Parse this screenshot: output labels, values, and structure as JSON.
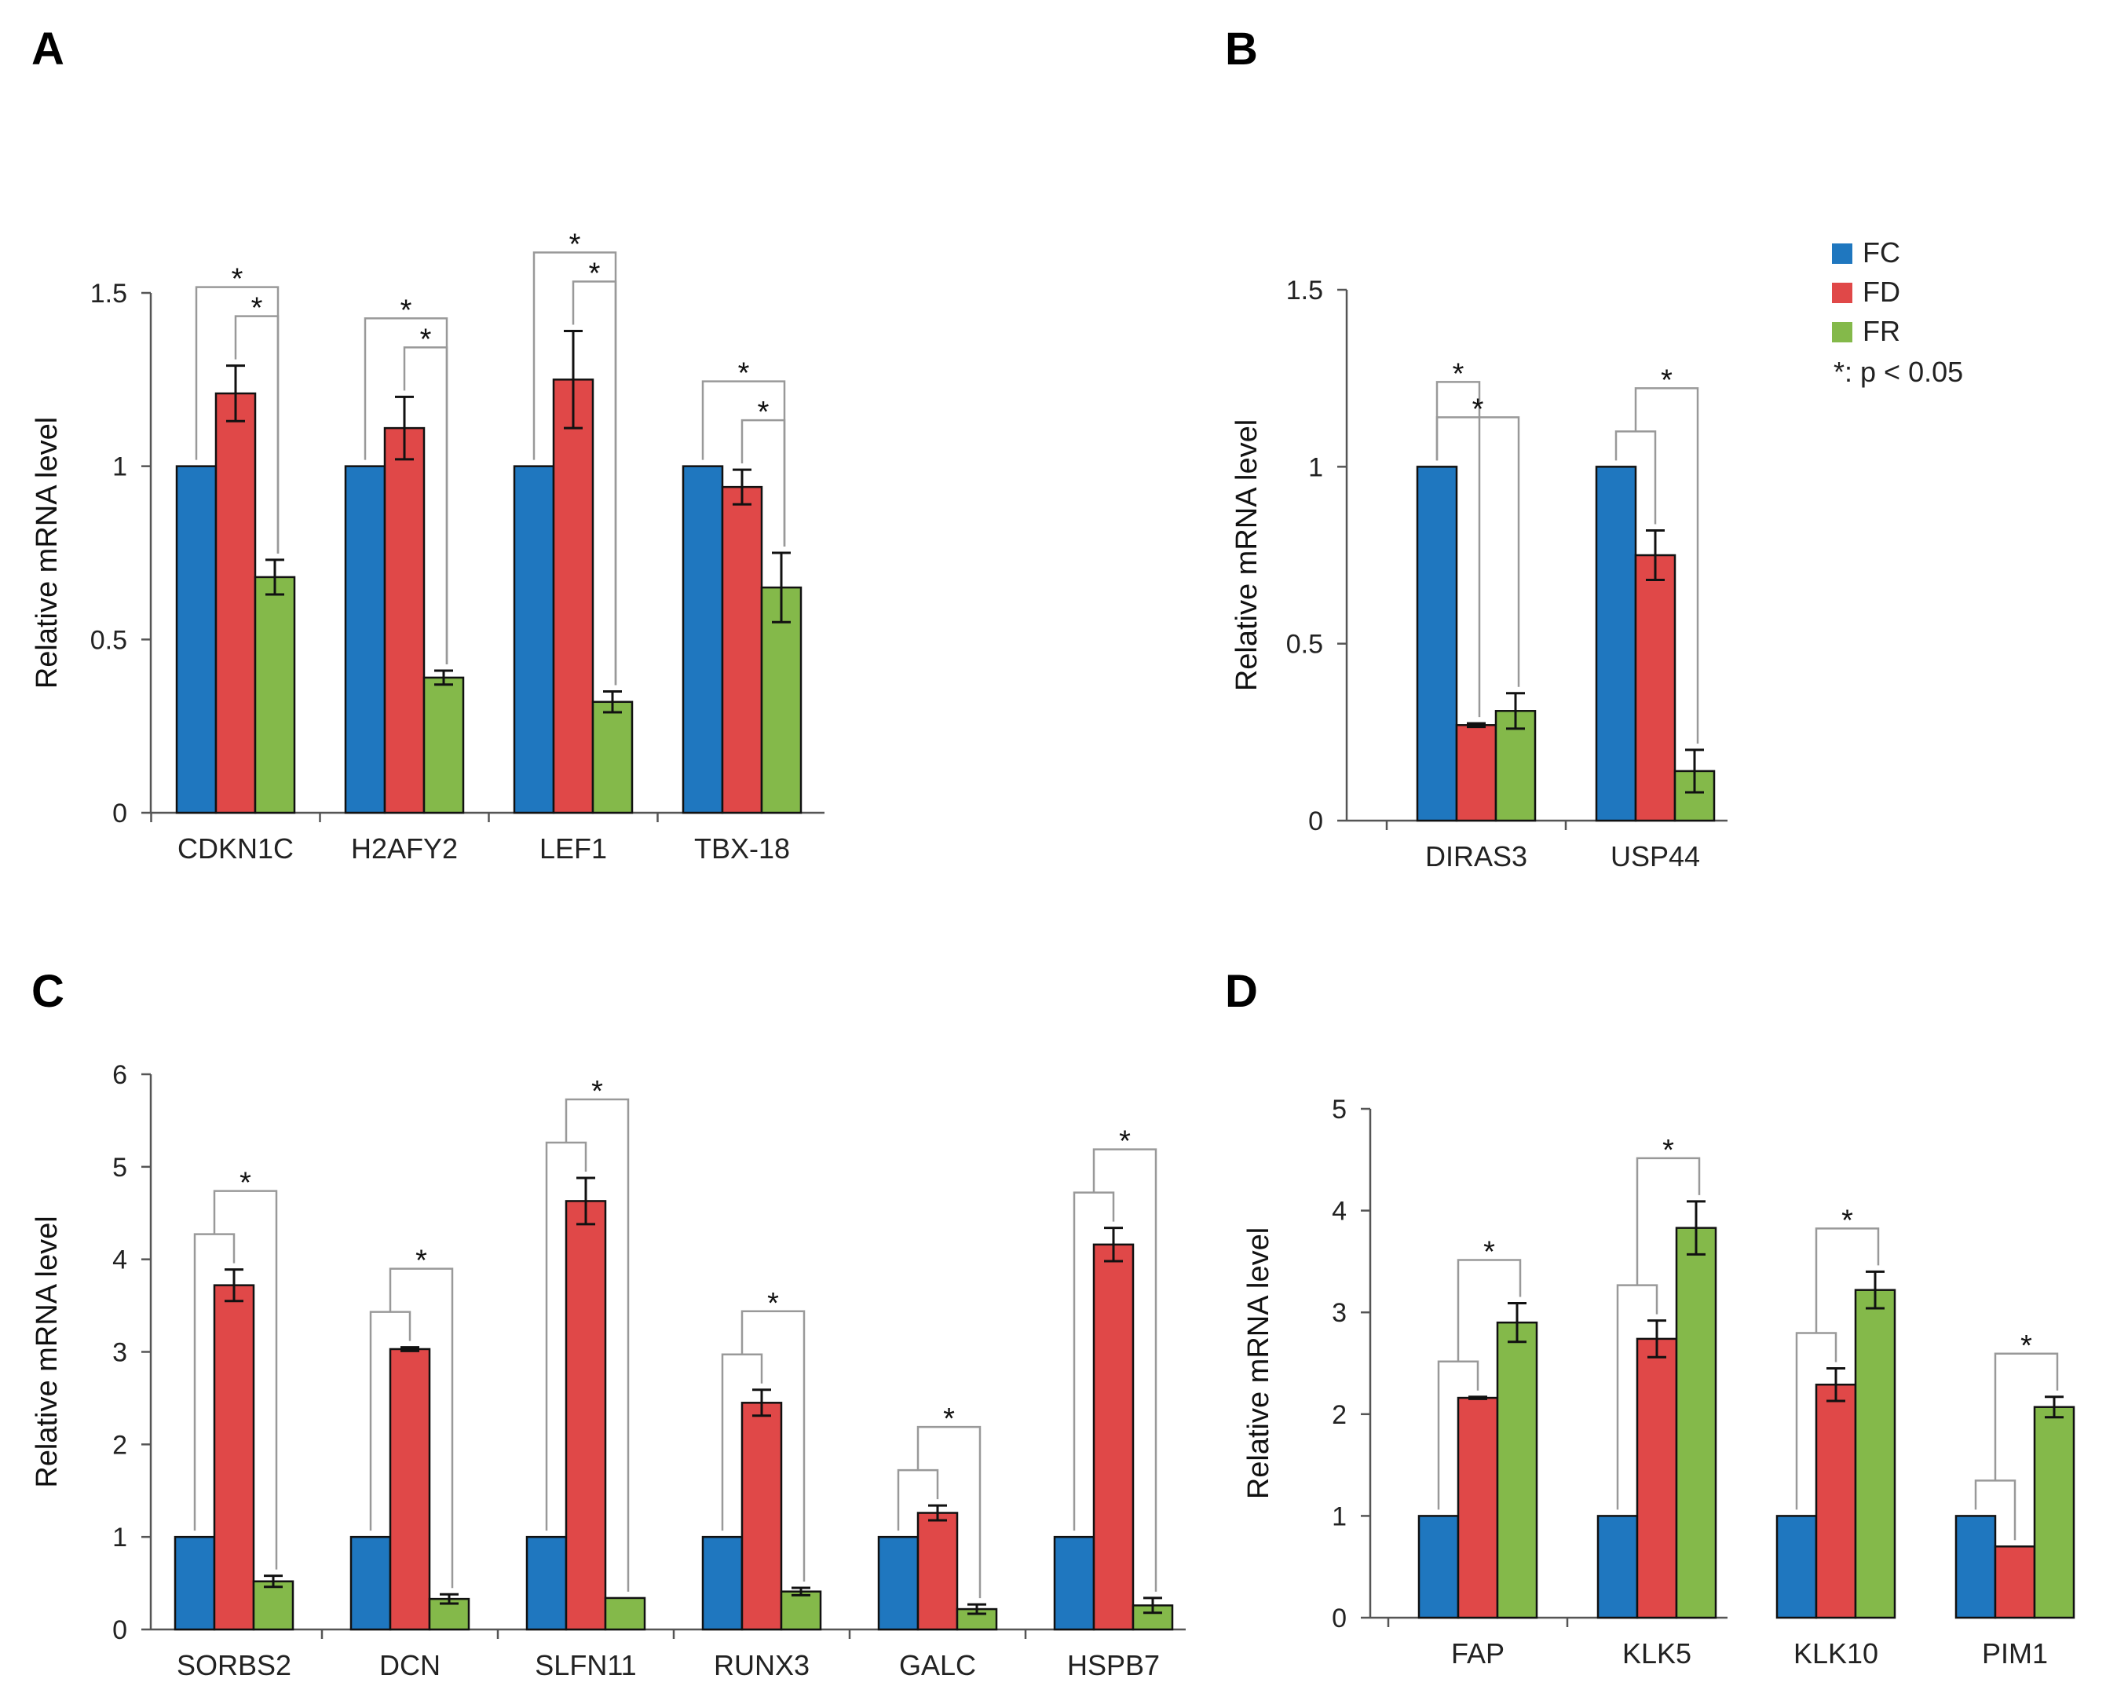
{
  "legend": {
    "items": [
      {
        "name": "FC",
        "color": "#1f77bf"
      },
      {
        "name": "FD",
        "color": "#e04848"
      },
      {
        "name": "FR",
        "color": "#84b94a"
      }
    ],
    "note": "*: p < 0.05"
  },
  "chart_data": [
    {
      "panel": "A",
      "type": "bar",
      "ylabel": "Relative mRNA  level",
      "ylim": [
        0,
        1.5
      ],
      "yticks": [
        "0",
        "0.5",
        "1",
        "1.5"
      ],
      "categories": [
        "CDKN1C",
        "H2AFY2",
        "LEF1",
        "TBX-18"
      ],
      "series": [
        {
          "name": "FC",
          "values": [
            1,
            1,
            1,
            1
          ],
          "errors": [
            0,
            0,
            0,
            0
          ]
        },
        {
          "name": "FD",
          "values": [
            1.21,
            1.11,
            1.25,
            0.94
          ],
          "errors": [
            0.08,
            0.09,
            0.14,
            0.05
          ]
        },
        {
          "name": "FR",
          "values": [
            0.68,
            0.39,
            0.32,
            0.65
          ],
          "errors": [
            0.05,
            0.02,
            0.03,
            0.1
          ]
        }
      ],
      "significance": [
        {
          "category": 0,
          "from": "FC",
          "to": "FR",
          "label": "*"
        },
        {
          "category": 0,
          "from": "FD",
          "to": "FR",
          "label": "*"
        },
        {
          "category": 1,
          "from": "FC",
          "to": "FR",
          "label": "*"
        },
        {
          "category": 1,
          "from": "FD",
          "to": "FR",
          "label": "*"
        },
        {
          "category": 2,
          "from": "FC",
          "to": "FR",
          "label": "*"
        },
        {
          "category": 2,
          "from": "FD",
          "to": "FR",
          "label": "*"
        },
        {
          "category": 3,
          "from": "FC",
          "to": "FR",
          "label": "*"
        },
        {
          "category": 3,
          "from": "FD",
          "to": "FR",
          "label": "*"
        }
      ]
    },
    {
      "panel": "B",
      "type": "bar",
      "ylabel": "Relative mRNA  level",
      "ylim": [
        0,
        1.5
      ],
      "yticks": [
        "0",
        "0.5",
        "1",
        "1.5"
      ],
      "categories": [
        "DIRAS3",
        "USP44"
      ],
      "series": [
        {
          "name": "FC",
          "values": [
            1,
            1
          ],
          "errors": [
            0,
            0
          ]
        },
        {
          "name": "FD",
          "values": [
            0.27,
            0.75
          ],
          "errors": [
            0.005,
            0.07
          ]
        },
        {
          "name": "FR",
          "values": [
            0.31,
            0.14
          ],
          "errors": [
            0.05,
            0.06
          ]
        }
      ],
      "significance": [
        {
          "category": 0,
          "from": "FC",
          "to": "FD",
          "label": "*"
        },
        {
          "category": 0,
          "from": "FC",
          "to": "FR",
          "label": "*"
        },
        {
          "category": 1,
          "from": "FCFD",
          "to": "FR",
          "label": "*"
        }
      ]
    },
    {
      "panel": "C",
      "type": "bar",
      "ylabel": "Relative mRNA  level",
      "ylim": [
        0,
        6
      ],
      "yticks": [
        "0",
        "1",
        "2",
        "3",
        "4",
        "5",
        "6"
      ],
      "categories": [
        "SORBS2",
        "DCN",
        "SLFN11",
        "RUNX3",
        "GALC",
        "HSPB7"
      ],
      "series": [
        {
          "name": "FC",
          "values": [
            1,
            1,
            1,
            1,
            1,
            1
          ],
          "errors": [
            0,
            0,
            0,
            0,
            0,
            0
          ]
        },
        {
          "name": "FD",
          "values": [
            3.72,
            3.03,
            4.63,
            2.45,
            1.26,
            4.16
          ],
          "errors": [
            0.17,
            0.02,
            0.25,
            0.14,
            0.08,
            0.18
          ]
        },
        {
          "name": "FR",
          "values": [
            0.52,
            0.33,
            0.34,
            0.41,
            0.22,
            0.26
          ],
          "errors": [
            0.06,
            0.05,
            0,
            0.04,
            0.05,
            0.08
          ]
        }
      ],
      "significance": [
        {
          "category": 0,
          "from": "FCFD",
          "to": "FR",
          "label": "*"
        },
        {
          "category": 1,
          "from": "FCFD",
          "to": "FR",
          "label": "*"
        },
        {
          "category": 2,
          "from": "FCFD",
          "to": "FR",
          "label": "*"
        },
        {
          "category": 3,
          "from": "FCFD",
          "to": "FR",
          "label": "*"
        },
        {
          "category": 4,
          "from": "FCFD",
          "to": "FR",
          "label": "*"
        },
        {
          "category": 5,
          "from": "FCFD",
          "to": "FR",
          "label": "*"
        }
      ]
    },
    {
      "panel": "D",
      "type": "bar",
      "ylabel": "Relative mRNA  level",
      "ylim": [
        0,
        5
      ],
      "yticks": [
        "0",
        "1",
        "2",
        "3",
        "4",
        "5"
      ],
      "categories": [
        "FAP",
        "KLK5",
        "KLK10",
        "PIM1"
      ],
      "series": [
        {
          "name": "FC",
          "values": [
            1,
            1,
            1,
            1
          ],
          "errors": [
            0,
            0,
            0,
            0
          ]
        },
        {
          "name": "FD",
          "values": [
            2.16,
            2.74,
            2.29,
            0.7
          ],
          "errors": [
            0.01,
            0.18,
            0.16,
            0
          ]
        },
        {
          "name": "FR",
          "values": [
            2.9,
            3.83,
            3.22,
            2.07
          ],
          "errors": [
            0.19,
            0.26,
            0.18,
            0.1
          ]
        }
      ],
      "significance": [
        {
          "category": 0,
          "from": "FCFD",
          "to": "FR",
          "label": "*"
        },
        {
          "category": 1,
          "from": "FCFD",
          "to": "FR",
          "label": "*"
        },
        {
          "category": 2,
          "from": "FCFD",
          "to": "FR",
          "label": "*"
        },
        {
          "category": 3,
          "from": "FCFD",
          "to": "FR",
          "label": "*"
        }
      ]
    }
  ]
}
